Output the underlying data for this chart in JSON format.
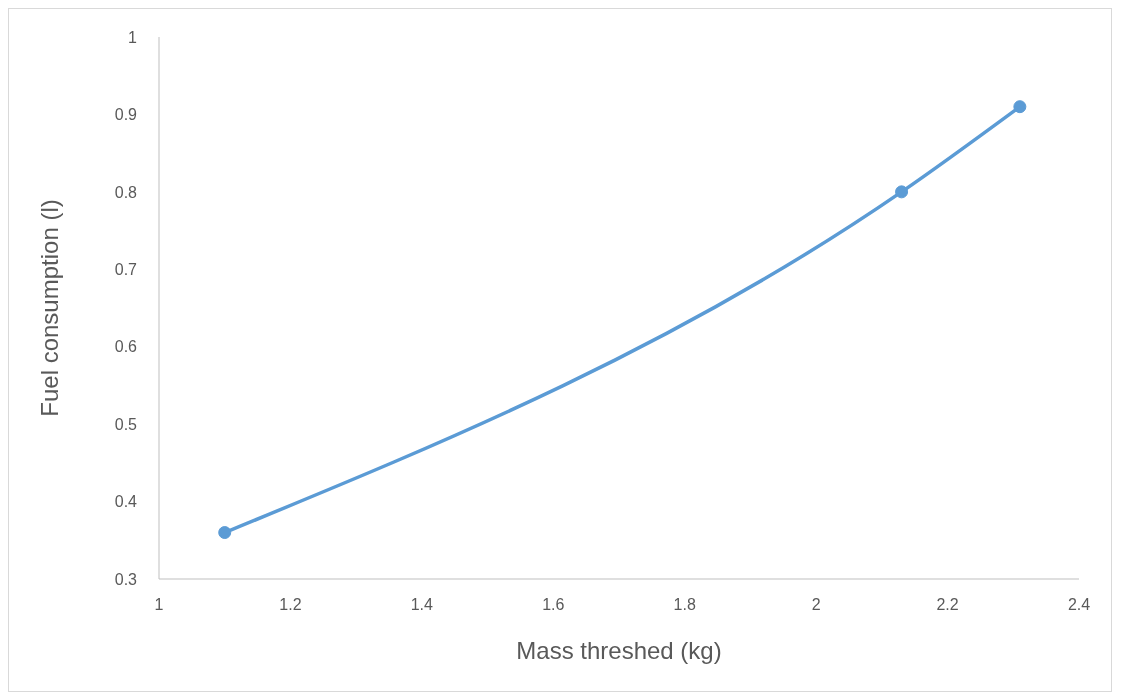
{
  "chart_data": {
    "type": "line",
    "xlabel": "Mass threshed  (kg)",
    "ylabel": "Fuel consumption (l)",
    "x": [
      1.1,
      2.13,
      2.31
    ],
    "series": [
      {
        "color": "#5b9bd5",
        "values": [
          0.36,
          0.8,
          0.91
        ]
      }
    ],
    "xlim": [
      1,
      2.4
    ],
    "xticks": [
      1,
      1.2,
      1.4,
      1.6,
      1.8,
      2,
      2.2,
      2.4
    ],
    "ylim": [
      0.3,
      1
    ],
    "yticks": [
      0.3,
      0.4,
      0.5,
      0.6,
      0.7,
      0.8,
      0.9,
      1
    ],
    "grid": false,
    "legend": false,
    "marker": "circle",
    "line_style": "solid"
  }
}
